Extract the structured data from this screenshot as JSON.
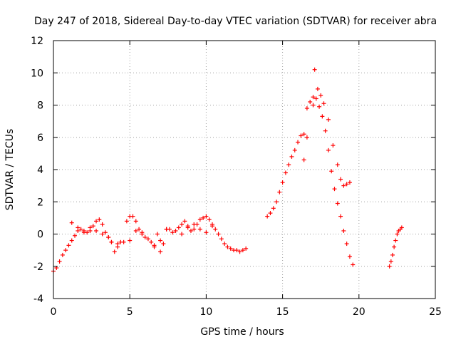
{
  "chart_data": {
    "type": "scatter",
    "title": "Day 247 of 2018, Sidereal Day-to-day VTEC variation (SDTVAR) for receiver abra",
    "xlabel": "GPS time / hours",
    "ylabel": "SDTVAR / TECUs",
    "xlim": [
      0,
      25
    ],
    "ylim": [
      -4,
      12
    ],
    "xticks": [
      0,
      5,
      10,
      15,
      20,
      25
    ],
    "yticks": [
      -4,
      -2,
      0,
      2,
      4,
      6,
      8,
      10,
      12
    ],
    "xtick_labels": [
      "0",
      "5",
      "10",
      "15",
      "20",
      "25"
    ],
    "ytick_labels": [
      "-4",
      "-2",
      "0",
      "2",
      "4",
      "6",
      "8",
      "10",
      "12"
    ],
    "grid": true,
    "marker": "+",
    "color": "#ff0000",
    "series": [
      {
        "name": "SDTVAR",
        "x": [
          0.0,
          0.2,
          0.4,
          0.6,
          0.8,
          1.0,
          1.2,
          1.4,
          1.6,
          1.8,
          2.0,
          2.2,
          2.4,
          2.6,
          2.8,
          3.0,
          3.2,
          3.4,
          3.6,
          3.8,
          4.0,
          4.2,
          4.4,
          4.6,
          4.8,
          5.0,
          5.2,
          5.4,
          5.6,
          5.8,
          6.0,
          6.2,
          6.4,
          6.6,
          6.8,
          7.0,
          7.2,
          7.4,
          7.6,
          7.8,
          8.0,
          8.2,
          8.4,
          8.6,
          8.8,
          9.0,
          9.2,
          9.4,
          9.6,
          9.8,
          10.0,
          10.2,
          10.4,
          10.6,
          10.8,
          11.0,
          11.2,
          11.4,
          11.6,
          11.8,
          12.0,
          12.2,
          12.4,
          12.6,
          1.2,
          1.6,
          2.0,
          2.4,
          2.8,
          3.2,
          3.6,
          3.8,
          4.2,
          5.0,
          5.4,
          5.8,
          6.6,
          7.0,
          7.4,
          8.4,
          8.8,
          9.2,
          9.6,
          10.0,
          10.4,
          14.0,
          14.2,
          14.4,
          14.6,
          14.8,
          15.0,
          15.2,
          15.4,
          15.6,
          15.8,
          16.0,
          16.2,
          16.4,
          16.6,
          16.8,
          17.0,
          17.2,
          17.4,
          17.6,
          17.8,
          18.0,
          18.2,
          18.4,
          18.6,
          18.8,
          19.0,
          19.2,
          19.4,
          19.6,
          16.4,
          16.6,
          17.0,
          17.1,
          17.3,
          17.5,
          17.7,
          18.0,
          18.3,
          18.6,
          18.8,
          19.0,
          19.2,
          19.4,
          22.0,
          22.1,
          22.2,
          22.3,
          22.4,
          22.5,
          22.6,
          22.7,
          22.8
        ],
        "y": [
          -2.3,
          -2.1,
          -1.7,
          -1.3,
          -1.0,
          -0.7,
          -0.4,
          -0.1,
          0.2,
          0.3,
          0.2,
          0.1,
          0.2,
          0.5,
          0.8,
          0.9,
          0.6,
          0.1,
          -0.2,
          -0.5,
          -1.1,
          -0.6,
          -0.5,
          -0.5,
          0.8,
          1.1,
          1.1,
          0.8,
          0.3,
          0.0,
          -0.2,
          -0.3,
          -0.5,
          -0.7,
          0.0,
          -1.1,
          -0.6,
          0.3,
          0.3,
          0.1,
          0.2,
          0.4,
          0.6,
          0.8,
          0.5,
          0.2,
          0.3,
          0.6,
          0.9,
          1.0,
          1.1,
          0.9,
          0.6,
          0.3,
          0.0,
          -0.3,
          -0.6,
          -0.8,
          -0.9,
          -1.0,
          -1.0,
          -1.1,
          -1.0,
          -0.9,
          0.7,
          0.4,
          0.1,
          0.4,
          0.2,
          0.0,
          -0.2,
          -0.5,
          -0.8,
          -0.4,
          0.2,
          0.1,
          -0.8,
          -0.4,
          0.3,
          0.0,
          0.4,
          0.6,
          0.3,
          0.1,
          0.5,
          1.1,
          1.3,
          1.6,
          2.0,
          2.6,
          3.2,
          3.8,
          4.3,
          4.8,
          5.2,
          5.7,
          6.1,
          6.2,
          7.8,
          8.2,
          8.5,
          8.4,
          7.9,
          7.3,
          6.4,
          5.2,
          3.9,
          2.8,
          1.9,
          1.1,
          0.2,
          -0.6,
          -1.4,
          -1.9,
          4.6,
          6.0,
          8.0,
          10.2,
          9.0,
          8.6,
          8.1,
          7.1,
          5.5,
          4.3,
          3.4,
          3.0,
          3.1,
          3.2,
          -2.0,
          -1.7,
          -1.3,
          -0.8,
          -0.4,
          0.0,
          0.2,
          0.3,
          0.4
        ]
      }
    ]
  }
}
